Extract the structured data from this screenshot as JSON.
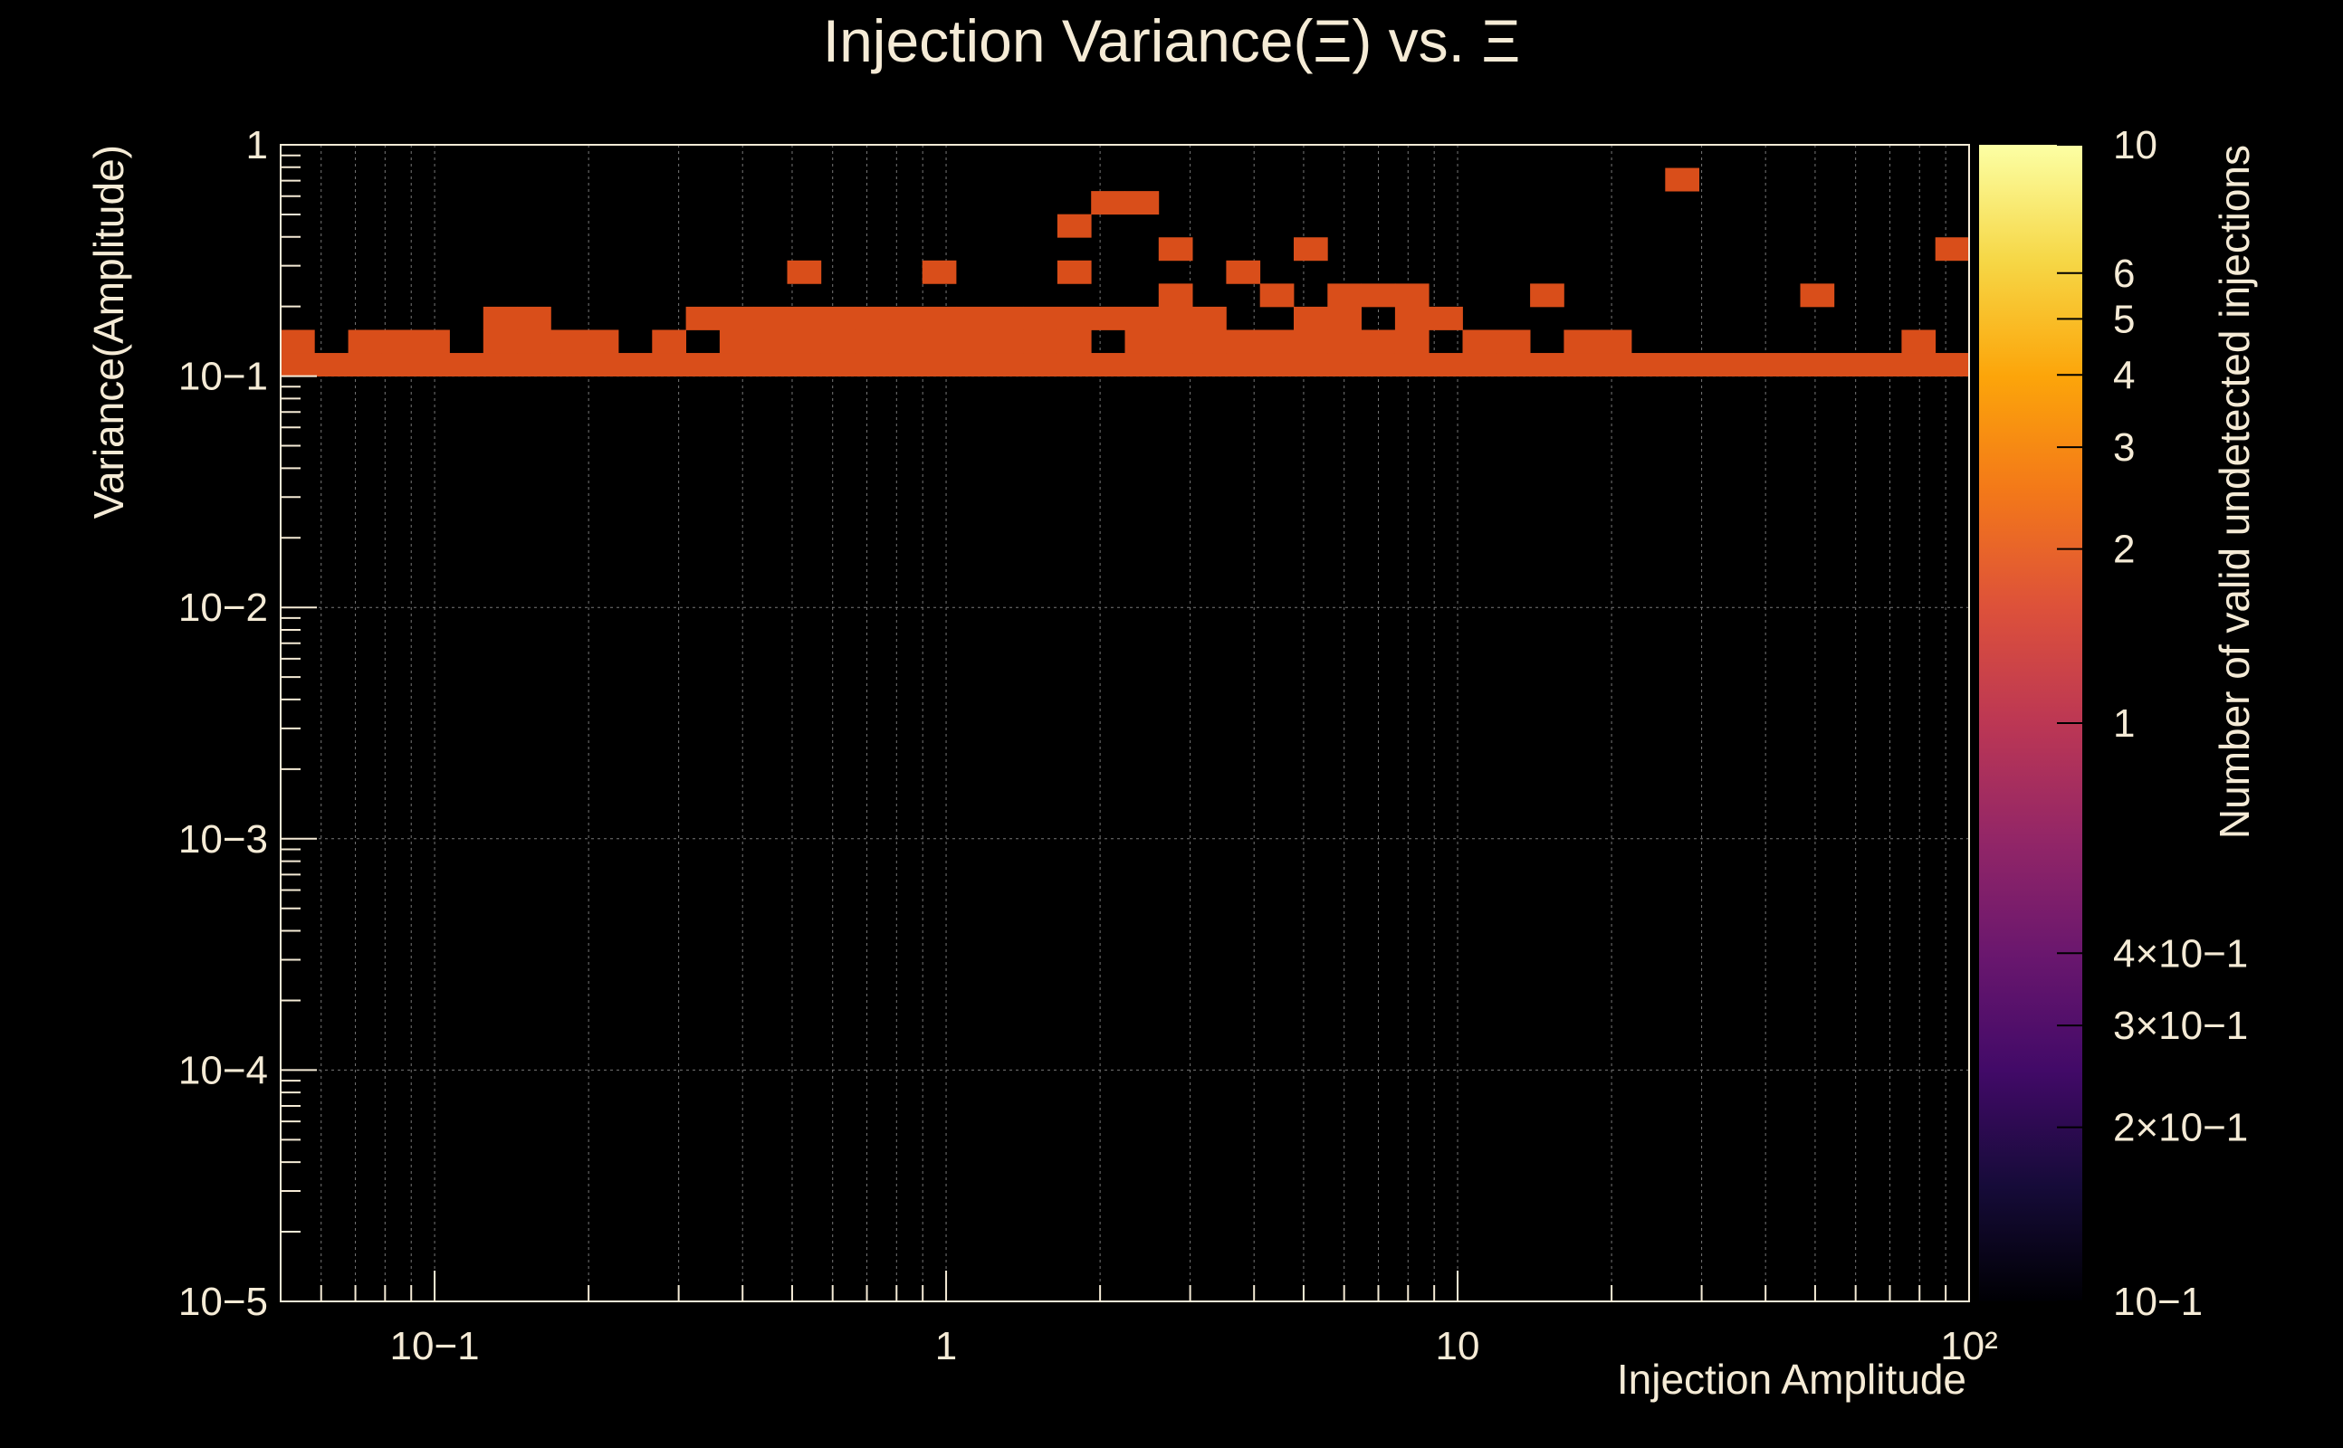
{
  "chart_data": {
    "type": "heatmap",
    "title": "Injection Variance(Ξ) vs. Ξ",
    "xlabel": "Injection Amplitude",
    "ylabel": "Variance(Amplitude)",
    "zlabel": "Number of valid undetected injections",
    "x_scale": "log",
    "y_scale": "log",
    "z_scale": "log",
    "xlim": [
      0.05,
      100
    ],
    "ylim": [
      1e-05,
      1
    ],
    "zlim": [
      0.1,
      10
    ],
    "grid": true,
    "colormap": "inferno",
    "x_tick_labels": [
      {
        "value": 0.1,
        "label": "10−1"
      },
      {
        "value": 1,
        "label": "1"
      },
      {
        "value": 10,
        "label": "10"
      },
      {
        "value": 100,
        "label": "10²"
      }
    ],
    "y_tick_labels": [
      {
        "value": 1,
        "label": "1"
      },
      {
        "value": 0.1,
        "label": "10−1"
      },
      {
        "value": 0.01,
        "label": "10−2"
      },
      {
        "value": 0.001,
        "label": "10−3"
      },
      {
        "value": 0.0001,
        "label": "10−4"
      },
      {
        "value": 1e-05,
        "label": "10−5"
      }
    ],
    "z_tick_labels": [
      {
        "value": 10,
        "label": "10"
      },
      {
        "value": 6,
        "label": "6"
      },
      {
        "value": 5,
        "label": "5"
      },
      {
        "value": 4,
        "label": "4"
      },
      {
        "value": 3,
        "label": "3"
      },
      {
        "value": 2,
        "label": "2"
      },
      {
        "value": 1,
        "label": "1"
      },
      {
        "value": 0.4,
        "label": "4×10−1"
      },
      {
        "value": 0.3,
        "label": "3×10−1"
      },
      {
        "value": 0.2,
        "label": "2×10−1"
      },
      {
        "value": 0.1,
        "label": "10−1"
      }
    ],
    "x_bins": 50,
    "y_bins": 50,
    "cells": [
      [
        41,
        1,
        0,
        3
      ],
      [
        24,
        2,
        0,
        3
      ],
      [
        25,
        2,
        0,
        3
      ],
      [
        23,
        3,
        0,
        3
      ],
      [
        26,
        4,
        0,
        3
      ],
      [
        30,
        4,
        0,
        3
      ],
      [
        49,
        4,
        0,
        3
      ],
      [
        15,
        5,
        0,
        3
      ],
      [
        19,
        5,
        0,
        3
      ],
      [
        23,
        5,
        0,
        3
      ],
      [
        28,
        5,
        0,
        3
      ],
      [
        26,
        6,
        0,
        2
      ],
      [
        29,
        6,
        0,
        2
      ],
      [
        31,
        6,
        0,
        2
      ],
      [
        32,
        6,
        0,
        2
      ],
      [
        33,
        6,
        0,
        2
      ],
      [
        37,
        6,
        0,
        3
      ],
      [
        45,
        6,
        0,
        2
      ],
      [
        6,
        7,
        0,
        2
      ],
      [
        7,
        7,
        0,
        2
      ],
      [
        12,
        7,
        0,
        2
      ],
      [
        13,
        7,
        0,
        2
      ],
      [
        14,
        7,
        0,
        2
      ],
      [
        15,
        7,
        0,
        2
      ],
      [
        16,
        7,
        0,
        2
      ],
      [
        17,
        7,
        0,
        2
      ],
      [
        18,
        7,
        0,
        2
      ],
      [
        19,
        7,
        0,
        2
      ],
      [
        20,
        7,
        0,
        2
      ],
      [
        21,
        7,
        0,
        2
      ],
      [
        22,
        7,
        0,
        2
      ],
      [
        23,
        7,
        0,
        2
      ],
      [
        24,
        7,
        0,
        2
      ],
      [
        25,
        7,
        0,
        2
      ],
      [
        26,
        7,
        0,
        2
      ],
      [
        27,
        7,
        0,
        2
      ],
      [
        30,
        7,
        0,
        2
      ],
      [
        31,
        7,
        0,
        2
      ],
      [
        33,
        7,
        0,
        2
      ],
      [
        34,
        7,
        0,
        2
      ],
      [
        0,
        8,
        0,
        2
      ],
      [
        2,
        8,
        0,
        2
      ],
      [
        3,
        8,
        0,
        2
      ],
      [
        4,
        8,
        0,
        2
      ],
      [
        6,
        8,
        0,
        2
      ],
      [
        7,
        8,
        0,
        2
      ],
      [
        8,
        8,
        0,
        2
      ],
      [
        9,
        8,
        0,
        2
      ],
      [
        11,
        8,
        0,
        2
      ],
      [
        13,
        8,
        0,
        2
      ],
      [
        14,
        8,
        0,
        2
      ],
      [
        15,
        8,
        0,
        2
      ],
      [
        16,
        8,
        0,
        2
      ],
      [
        17,
        8,
        0,
        2
      ],
      [
        18,
        8,
        0,
        2
      ],
      [
        19,
        8,
        0,
        2
      ],
      [
        20,
        8,
        0,
        2
      ],
      [
        21,
        8,
        0,
        2
      ],
      [
        22,
        8,
        0,
        2
      ],
      [
        23,
        8,
        0,
        2
      ],
      [
        25,
        8,
        0,
        2
      ],
      [
        26,
        8,
        0,
        2
      ],
      [
        27,
        8,
        0,
        2
      ],
      [
        28,
        8,
        0,
        2
      ],
      [
        29,
        8,
        0,
        2
      ],
      [
        30,
        8,
        0,
        2
      ],
      [
        31,
        8,
        0,
        2
      ],
      [
        32,
        8,
        0,
        2
      ],
      [
        33,
        8,
        0,
        2
      ],
      [
        35,
        8,
        0,
        2
      ],
      [
        36,
        8,
        0,
        2
      ],
      [
        38,
        8,
        0,
        2
      ],
      [
        39,
        8,
        0,
        2
      ],
      [
        48,
        8,
        0,
        2
      ],
      [
        0,
        9,
        0,
        2
      ],
      [
        1,
        9,
        0,
        2
      ],
      [
        2,
        9,
        0,
        2
      ],
      [
        3,
        9,
        0,
        2
      ],
      [
        4,
        9,
        0,
        2
      ],
      [
        5,
        9,
        0,
        2
      ],
      [
        6,
        9,
        0,
        2
      ],
      [
        7,
        9,
        0,
        2
      ],
      [
        8,
        9,
        0,
        2
      ],
      [
        9,
        9,
        0,
        2
      ],
      [
        10,
        9,
        0,
        2
      ],
      [
        11,
        9,
        0,
        2
      ],
      [
        12,
        9,
        0,
        2
      ],
      [
        13,
        9,
        0,
        2
      ],
      [
        14,
        9,
        0,
        2
      ],
      [
        15,
        9,
        0,
        2
      ],
      [
        16,
        9,
        0,
        2
      ],
      [
        17,
        9,
        0,
        2
      ],
      [
        18,
        9,
        0,
        2
      ],
      [
        19,
        9,
        0,
        2
      ],
      [
        20,
        9,
        0,
        2
      ],
      [
        21,
        9,
        0,
        2
      ],
      [
        22,
        9,
        0,
        2
      ],
      [
        23,
        9,
        0,
        2
      ],
      [
        24,
        9,
        0,
        2
      ],
      [
        25,
        9,
        0,
        2
      ],
      [
        26,
        9,
        0,
        2
      ],
      [
        27,
        9,
        0,
        2
      ],
      [
        28,
        9,
        0,
        2
      ],
      [
        29,
        9,
        0,
        2
      ],
      [
        30,
        9,
        0,
        2
      ],
      [
        31,
        9,
        0,
        2
      ],
      [
        32,
        9,
        0,
        2
      ],
      [
        33,
        9,
        0,
        2
      ],
      [
        34,
        9,
        0,
        2
      ],
      [
        35,
        9,
        0,
        2
      ],
      [
        36,
        9,
        0,
        2
      ],
      [
        37,
        9,
        0,
        2
      ],
      [
        38,
        9,
        0,
        2
      ],
      [
        39,
        9,
        0,
        2
      ],
      [
        40,
        9,
        0,
        2
      ],
      [
        41,
        9,
        0,
        2
      ],
      [
        42,
        9,
        0,
        2
      ],
      [
        43,
        9,
        0,
        2
      ],
      [
        44,
        9,
        0,
        2
      ],
      [
        45,
        9,
        0,
        2
      ],
      [
        46,
        9,
        0,
        2
      ],
      [
        47,
        9,
        0,
        2
      ],
      [
        48,
        9,
        0,
        2
      ],
      [
        49,
        9,
        0,
        2
      ]
    ],
    "cells_format": "[x_bin, y_bin, ignored, ignored]"
  }
}
